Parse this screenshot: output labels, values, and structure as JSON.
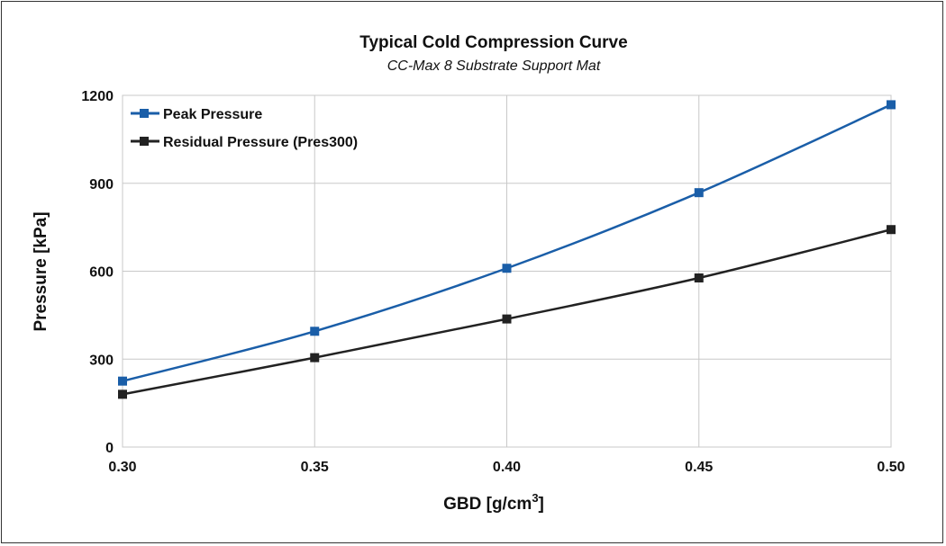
{
  "chart_data": {
    "type": "line",
    "title": "Typical Cold Compression Curve",
    "subtitle": "CC-Max 8 Substrate Support Mat",
    "xlabel": "GBD [g/cm",
    "xlabel_superscript": "3",
    "xlabel_suffix": "]",
    "ylabel": "Pressure [kPa]",
    "x": [
      0.3,
      0.35,
      0.4,
      0.45,
      0.5
    ],
    "x_tick_labels": [
      "0.30",
      "0.35",
      "0.40",
      "0.45",
      "0.50"
    ],
    "xlim": [
      0.3,
      0.5
    ],
    "ylim": [
      0,
      1200
    ],
    "y_ticks": [
      0,
      300,
      600,
      900,
      1200
    ],
    "y_tick_labels": [
      "0",
      "300",
      "600",
      "900",
      "1200"
    ],
    "grid": true,
    "legend_position": "top-left",
    "series": [
      {
        "name": "Peak Pressure",
        "color": "#1a5ea8",
        "values": [
          225,
          395,
          610,
          868,
          1168
        ]
      },
      {
        "name": "Residual Pressure (Pres300)",
        "color": "#222222",
        "values": [
          180,
          305,
          437,
          577,
          742
        ]
      }
    ]
  }
}
